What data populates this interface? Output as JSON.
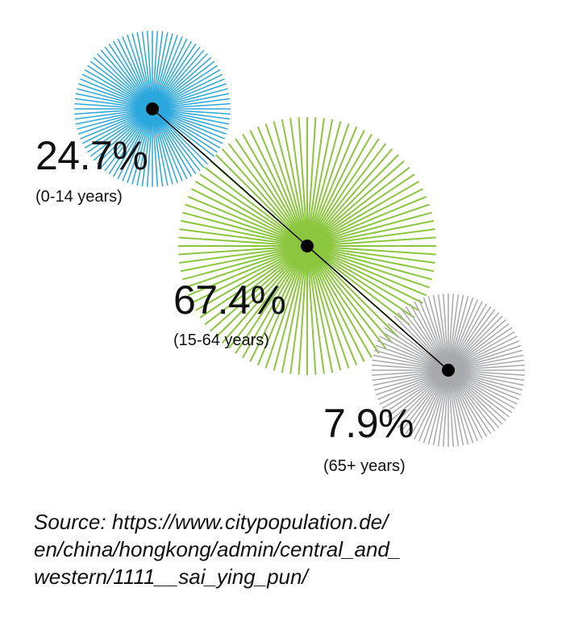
{
  "chart_data": {
    "type": "pie",
    "categories": [
      "(0-14 years)",
      "(15-64 years)",
      "(65+ years)"
    ],
    "values": [
      24.7,
      67.4,
      7.9
    ],
    "labels": [
      "24.7%",
      "67.4%",
      "7.9%"
    ],
    "colors": [
      "#2aa7dc",
      "#8cc63f",
      "#a7a9ac"
    ],
    "marker_color": "#000000",
    "connector_color": "#000000"
  },
  "source": {
    "line1": "Source: https://www.citypopulation.de/",
    "line2": "en/china/hongkong/admin/central_and_",
    "line3": "western/1111__sai_ying_pun/"
  }
}
